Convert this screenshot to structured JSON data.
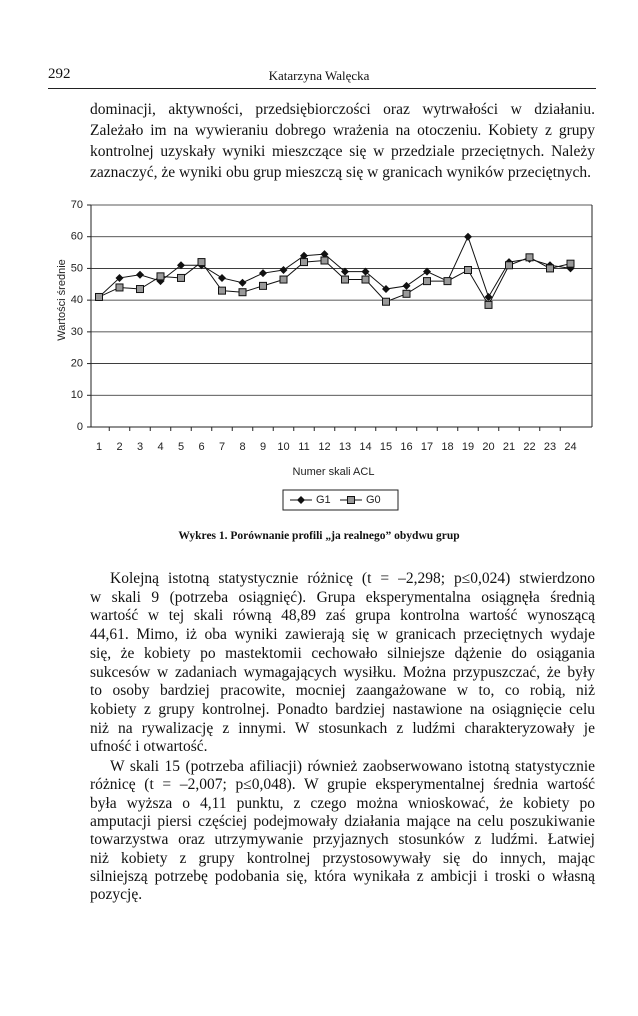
{
  "header": {
    "page_number": "292",
    "author": "Katarzyna Walęcka"
  },
  "paragraphs": [
    {
      "lines": [
        "dominacji, aktywności, przedsiębiorczości oraz wytrwałości w działaniu.",
        "Zależało im na wywieraniu dobrego wrażenia na otoczeniu. Kobiety z grupy",
        "kontrolnej uzyskały wyniki mieszczące się w przedziale przeciętnych. Należy",
        "zaznaczyć, że wyniki obu grup mieszczą się w granicach wyników przeciętnych."
      ]
    },
    {
      "lines": [
        "Kolejną istotną statystycznie różnicę (t = –2,298; p≤0,024) stwierdzono",
        "w skali 9 (potrzeba osiągnięć). Grupa eksperymentalna osiągnęła średnią",
        "wartość w tej skali równą 48,89 zaś grupa kontrolna wartość wynoszącą",
        "44,61. Mimo, iż oba wyniki zawierają się w granicach przeciętnych wydaje",
        "się, że kobiety po mastektomii cechowało silniejsze dążenie do osiągania",
        "sukcesów w zadaniach wymagających wysiłku. Można przypuszczać, że były",
        "to osoby bardziej pracowite, mocniej zaangażowane w to, co robią, niż",
        "kobiety z grupy kontrolnej. Ponadto bardziej nastawione na osiągnięcie celu",
        "niż na rywalizację z innymi. W stosunkach z ludźmi charakteryzowały je",
        "ufność i otwartość."
      ]
    },
    {
      "lines": [
        "W skali 15 (potrzeba afiliacji) również zaobserwowano istotną statystycznie",
        "różnicę (t = –2,007; p≤0,048). W grupie eksperymentalnej średnia wartość",
        "była wyższa o 4,11 punktu, z czego można wnioskować, że kobiety po",
        "amputacji piersi częściej podejmowały działania mające na celu poszukiwanie",
        "towarzystwa oraz utrzymywanie przyjaznych stosunków z ludźmi. Łatwiej",
        "niż kobiety z grupy kontrolnej przystosowywały się do innych, mając",
        "silniejszą potrzebę podobania się, która wynikała z ambicji i troski o własną",
        "pozycję."
      ]
    }
  ],
  "chart_data": {
    "type": "line",
    "x_label": "Numer skali ACL",
    "y_label": "Wartości średnie",
    "categories": [
      "1",
      "2",
      "3",
      "4",
      "5",
      "6",
      "7",
      "8",
      "9",
      "10",
      "11",
      "12",
      "13",
      "14",
      "15",
      "16",
      "17",
      "18",
      "19",
      "20",
      "21",
      "22",
      "23",
      "24"
    ],
    "series": [
      {
        "name": "G1",
        "color": "#111111",
        "marker": "diamond",
        "values": [
          41,
          47,
          48,
          46,
          51,
          51,
          47,
          45.5,
          48.5,
          49.5,
          54,
          54.5,
          49,
          49,
          43.5,
          44.5,
          49,
          46,
          60,
          41,
          52,
          53,
          51,
          50
        ]
      },
      {
        "name": "G0",
        "color": "#111111",
        "marker": "square",
        "values": [
          41,
          44,
          43.5,
          47.5,
          47,
          52,
          43,
          42.5,
          44.5,
          46.5,
          52,
          52.5,
          46.5,
          46.5,
          39.5,
          42,
          46,
          46,
          49.5,
          38.5,
          51,
          53.5,
          50,
          51.5
        ]
      }
    ],
    "ylim": [
      0,
      70
    ],
    "yticks": [
      0,
      10,
      20,
      30,
      40,
      50,
      60,
      70
    ],
    "grid": true,
    "legend": "bottom"
  },
  "caption": "Wykres 1. Porównanie profili „ja realnego” obydwu grup"
}
